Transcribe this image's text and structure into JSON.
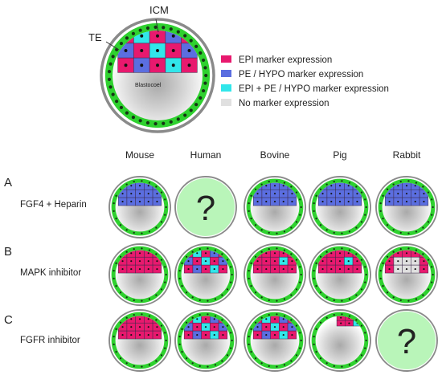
{
  "schematic": {
    "icm_label": "ICM",
    "te_label": "TE",
    "cavity_label": "Blastocoel"
  },
  "legend": [
    {
      "label": "EPI marker expression",
      "color": "#e8196e"
    },
    {
      "label": "PE / HYPO marker expression",
      "color": "#5b6ee0"
    },
    {
      "label": "EPI + PE / HYPO marker expression",
      "color": "#31e6ea"
    },
    {
      "label": "No marker expression",
      "color": "#e0e0e0"
    }
  ],
  "species": [
    "Mouse",
    "Human",
    "Bovine",
    "Pig",
    "Rabbit"
  ],
  "conditions": [
    {
      "letter": "A",
      "label": "FGF4 + Heparin",
      "results": [
        "pe",
        "unknown",
        "pe",
        "pe",
        "pe"
      ]
    },
    {
      "letter": "B",
      "label": "MAPK inhibitor",
      "results": [
        "epi",
        "mixed",
        "epi_few_cyan",
        "epi_few_cyan",
        "epi_none"
      ]
    },
    {
      "letter": "C",
      "label": "FGFR inhibitor",
      "results": [
        "epi",
        "mixed",
        "mixed",
        "epi_small",
        "unknown"
      ]
    }
  ],
  "unknown_symbol": "?",
  "colors": {
    "trophectoderm": "#2fd12f",
    "epi": "#e8196e",
    "pe": "#5b6ee0",
    "both": "#31e6ea",
    "none": "#e0e0e0",
    "unknown_fill": "#b9f5b9",
    "shell": "#8a8a8a"
  }
}
